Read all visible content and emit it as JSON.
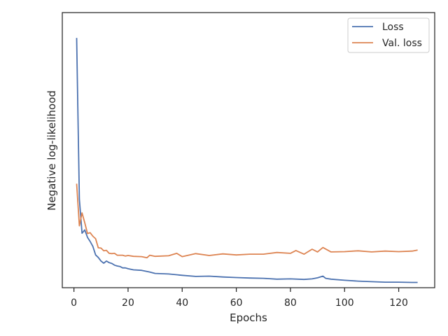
{
  "chart_data": {
    "type": "line",
    "title": "",
    "xlabel": "Epochs",
    "ylabel": "Negative log-likelihood",
    "xlim": [
      -4.3,
      133.3
    ],
    "ylim": [
      0,
      1
    ],
    "xticks": [
      0,
      20,
      40,
      60,
      80,
      100,
      120
    ],
    "yticks_shown": false,
    "grid": false,
    "legend_position": "top-right",
    "series": [
      {
        "name": "Loss",
        "color": "#4c72b0",
        "x": [
          1,
          2,
          3,
          4,
          5,
          6,
          7,
          8,
          9,
          10,
          11,
          12,
          13,
          14,
          15,
          16,
          17,
          18,
          19,
          20,
          22,
          25,
          28,
          30,
          35,
          40,
          45,
          50,
          55,
          60,
          65,
          70,
          75,
          80,
          85,
          88,
          90,
          92,
          93,
          95,
          100,
          105,
          110,
          115,
          120,
          125,
          127
        ],
        "y": [
          0.908,
          0.322,
          0.198,
          0.21,
          0.183,
          0.168,
          0.15,
          0.119,
          0.11,
          0.097,
          0.089,
          0.097,
          0.091,
          0.088,
          0.082,
          0.079,
          0.077,
          0.072,
          0.072,
          0.069,
          0.065,
          0.063,
          0.057,
          0.052,
          0.05,
          0.045,
          0.041,
          0.042,
          0.039,
          0.037,
          0.035,
          0.034,
          0.031,
          0.032,
          0.03,
          0.032,
          0.036,
          0.042,
          0.034,
          0.031,
          0.027,
          0.024,
          0.022,
          0.02,
          0.02,
          0.019,
          0.019
        ]
      },
      {
        "name": "Val. loss",
        "color": "#dd8452",
        "x": [
          1,
          2,
          3,
          4,
          5,
          6,
          7,
          8,
          9,
          10,
          11,
          12,
          13,
          14,
          15,
          16,
          17,
          18,
          19,
          20,
          22,
          25,
          27,
          28,
          30,
          35,
          38,
          40,
          45,
          50,
          55,
          60,
          65,
          70,
          75,
          80,
          82,
          85,
          88,
          90,
          92,
          95,
          100,
          105,
          110,
          115,
          120,
          125,
          127
        ],
        "y": [
          0.378,
          0.225,
          0.272,
          0.236,
          0.197,
          0.2,
          0.187,
          0.178,
          0.145,
          0.144,
          0.134,
          0.136,
          0.125,
          0.124,
          0.125,
          0.118,
          0.118,
          0.118,
          0.115,
          0.117,
          0.114,
          0.113,
          0.109,
          0.118,
          0.114,
          0.116,
          0.125,
          0.113,
          0.124,
          0.117,
          0.123,
          0.119,
          0.122,
          0.122,
          0.128,
          0.125,
          0.135,
          0.122,
          0.14,
          0.13,
          0.146,
          0.13,
          0.131,
          0.134,
          0.13,
          0.133,
          0.131,
          0.133,
          0.137
        ]
      }
    ]
  }
}
